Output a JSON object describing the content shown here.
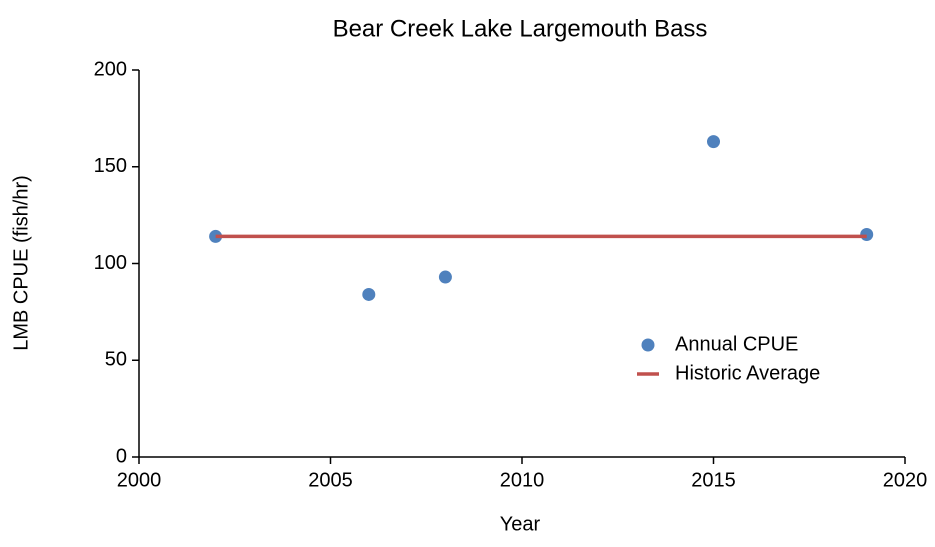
{
  "chart_data": {
    "type": "scatter",
    "title": "Bear Creek Lake Largemouth Bass",
    "xlabel": "Year",
    "ylabel": "LMB CPUE (fish/hr)",
    "series": [
      {
        "name": "Annual CPUE",
        "type": "scatter",
        "color": "#4f81bd",
        "x": [
          2002,
          2006,
          2008,
          2015,
          2019
        ],
        "values": [
          114,
          84,
          93,
          163,
          115
        ]
      },
      {
        "name": "Historic Average",
        "type": "line",
        "color": "#c0504d",
        "x": [
          2002,
          2019
        ],
        "values": [
          114,
          114
        ]
      }
    ],
    "xlim": [
      2000,
      2020
    ],
    "xticks": [
      2000,
      2005,
      2010,
      2015,
      2020
    ],
    "ylim": [
      0,
      200
    ],
    "yticks": [
      0,
      50,
      100,
      150,
      200
    ],
    "grid": false,
    "legend": "center right"
  }
}
